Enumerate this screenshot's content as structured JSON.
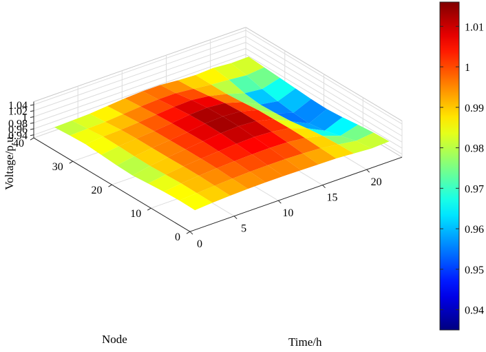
{
  "chart_data": {
    "type": "surface3d",
    "title": "",
    "xlabel": "Time/h",
    "ylabel": "Node",
    "zlabel": "Voltage/p.u.",
    "xlim": [
      0,
      24
    ],
    "ylim": [
      0,
      40
    ],
    "zlim": [
      0.93,
      1.05
    ],
    "x_ticks": [
      0,
      5,
      10,
      15,
      20
    ],
    "y_ticks": [
      0,
      10,
      20,
      30,
      40
    ],
    "z_ticks": [
      0.94,
      0.96,
      0.98,
      1,
      1.02,
      1.04
    ],
    "x_tick_labels": [
      "0",
      "5",
      "10",
      "15",
      "20"
    ],
    "y_tick_labels": [
      "0",
      "10",
      "20",
      "30",
      "40"
    ],
    "z_tick_labels": [
      "0.94",
      "0.96",
      "0.98",
      "1",
      "1.02",
      "1.04"
    ],
    "grid": true,
    "colormap": "jet",
    "colorbar": {
      "position": "right",
      "clim": [
        0.935,
        1.016
      ],
      "ticks": [
        0.94,
        0.95,
        0.96,
        0.97,
        0.98,
        0.99,
        1.0,
        1.01
      ],
      "tick_labels": [
        "0.94",
        "0.95",
        "0.96",
        "0.97",
        "0.98",
        "0.99",
        "1",
        "1.01"
      ]
    },
    "grid_time_h": [
      1,
      3,
      5,
      7,
      9,
      11,
      13,
      15,
      17,
      19,
      21,
      23
    ],
    "grid_node": [
      1,
      5,
      9,
      13,
      17,
      21,
      25,
      29,
      33,
      37
    ],
    "voltage_pu": [
      [
        0.983,
        0.987,
        0.99,
        0.992,
        0.993,
        0.993,
        0.992,
        0.991,
        0.99,
        0.986,
        0.982,
        0.985
      ],
      [
        0.984,
        0.988,
        0.992,
        0.995,
        0.997,
        0.998,
        0.998,
        0.996,
        0.993,
        0.985,
        0.976,
        0.983
      ],
      [
        0.982,
        0.989,
        0.994,
        0.998,
        1.001,
        1.003,
        1.004,
        1.002,
        0.996,
        0.982,
        0.962,
        0.978
      ],
      [
        0.978,
        0.987,
        0.994,
        0.999,
        1.003,
        1.007,
        1.009,
        1.006,
        0.997,
        0.976,
        0.948,
        0.972
      ],
      [
        0.974,
        0.985,
        0.993,
        0.999,
        1.005,
        1.011,
        1.014,
        1.01,
        0.996,
        0.968,
        0.941,
        0.968
      ],
      [
        0.976,
        0.986,
        0.993,
        0.998,
        1.004,
        1.012,
        1.015,
        1.011,
        0.995,
        0.964,
        0.945,
        0.97
      ],
      [
        0.98,
        0.988,
        0.993,
        0.997,
        1.003,
        1.01,
        1.013,
        1.008,
        0.99,
        0.962,
        0.952,
        0.974
      ],
      [
        0.984,
        0.989,
        0.991,
        0.995,
        1.0,
        1.005,
        1.007,
        1.0,
        0.986,
        0.968,
        0.962,
        0.978
      ],
      [
        0.982,
        0.984,
        0.986,
        0.991,
        0.996,
        0.999,
        0.999,
        0.993,
        0.986,
        0.982,
        0.976,
        0.982
      ],
      [
        0.978,
        0.98,
        0.982,
        0.987,
        0.992,
        0.995,
        0.995,
        0.99,
        0.987,
        0.99,
        0.985,
        0.986
      ]
    ]
  }
}
